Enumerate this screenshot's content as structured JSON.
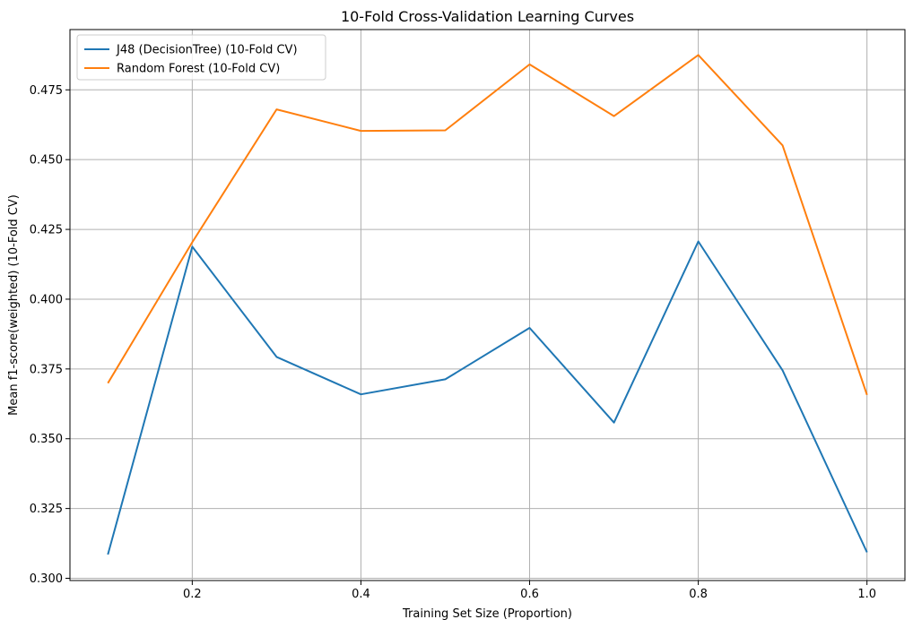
{
  "chart_data": {
    "type": "line",
    "title": "10-Fold Cross-Validation Learning Curves",
    "xlabel": "Training Set Size (Proportion)",
    "ylabel": "Mean f1-score(weighted) (10-Fold CV)",
    "x": [
      0.1,
      0.2,
      0.3,
      0.4,
      0.5,
      0.6,
      0.7,
      0.8,
      0.9,
      1.0
    ],
    "xlim": [
      0.055,
      1.045
    ],
    "ylim": [
      0.2992,
      0.4966
    ],
    "xticks": [
      0.2,
      0.4,
      0.6,
      0.8,
      1.0
    ],
    "xtick_labels": [
      "0.2",
      "0.4",
      "0.6",
      "0.8",
      "1.0"
    ],
    "yticks": [
      0.3,
      0.325,
      0.35,
      0.375,
      0.4,
      0.425,
      0.45,
      0.475
    ],
    "ytick_labels": [
      "0.300",
      "0.325",
      "0.350",
      "0.375",
      "0.400",
      "0.425",
      "0.450",
      "0.475"
    ],
    "grid": true,
    "legend_position": "top-left",
    "series": [
      {
        "name": "J48 (DecisionTree) (10-Fold CV)",
        "color": "#1f77b4",
        "values": [
          0.3085,
          0.4188,
          0.3793,
          0.3659,
          0.3713,
          0.3897,
          0.3558,
          0.4207,
          0.3745,
          0.3093
        ]
      },
      {
        "name": "Random Forest (10-Fold CV)",
        "color": "#ff7f0e",
        "values": [
          0.3699,
          0.4204,
          0.468,
          0.4603,
          0.4605,
          0.4841,
          0.4656,
          0.4875,
          0.4551,
          0.3657
        ]
      }
    ]
  }
}
